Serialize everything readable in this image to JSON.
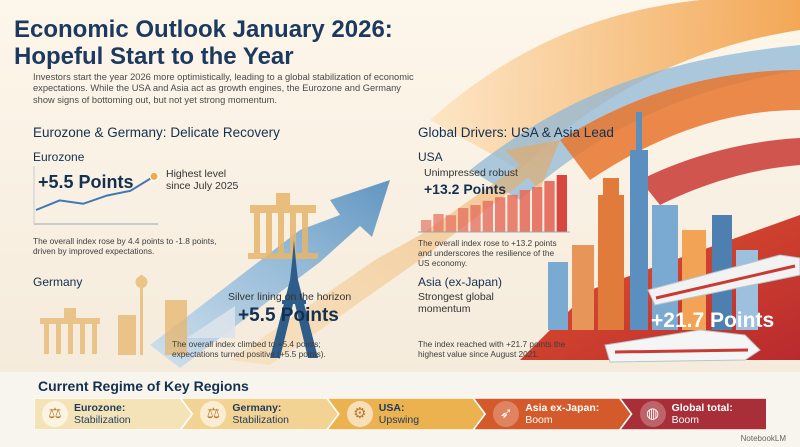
{
  "header": {
    "title": "Economic Outlook January 2026: Hopeful Start to the Year",
    "intro": "Investors start the year 2026 more optimistically, leading to a global stabilization of economic expectations. While the USA and Asia act as growth engines, the Eurozone and Germany show signs of bottoming out, but not yet strong momentum."
  },
  "eurozone_section": {
    "heading": "Eurozone & Germany: Delicate Recovery",
    "eurozone": {
      "label": "Eurozone",
      "value": "+5.5 Points",
      "callout_line1": "Highest level",
      "callout_line2": "since July 2025",
      "note_line1": "The overall index rose by 4.4 points to -1.8 points,",
      "note_line2": "driven by improved expectations.",
      "trend": [
        0.25,
        0.45,
        0.38,
        0.55,
        0.65,
        0.95
      ]
    },
    "germany": {
      "label": "Germany",
      "callout": "Silver lining on the horizon",
      "value": "+5.5 Points",
      "note_line1": "The overall index climbed to +5.4 points;",
      "note_line2": "expectations turned positive (+5.5 points)."
    }
  },
  "global_section": {
    "heading": "Global Drivers: USA & Asia Lead",
    "usa": {
      "label": "USA",
      "callout": "Unimpressed robust",
      "value": "+13.2 Points",
      "note_line1": "The overall index rose to +13.2 points",
      "note_line2": "and underscores the resilience of the",
      "note_line3": "US economy.",
      "trend": [
        0.2,
        0.3,
        0.28,
        0.4,
        0.45,
        0.52,
        0.58,
        0.62,
        0.7,
        0.75,
        0.85,
        0.95
      ]
    },
    "asia": {
      "label": "Asia (ex-Japan)",
      "callout_line1": "Strongest global",
      "callout_line2": "momentum",
      "value": "+21.7 Points",
      "note_line1": "The index reached with +21.7 points the",
      "note_line2": "highest value since August 2021."
    }
  },
  "regimes": {
    "title": "Current Regime of Key Regions",
    "items": [
      {
        "region": "Eurozone:",
        "state": "Stabilization",
        "icon": "scales-icon",
        "fill": "#f5e3b8",
        "text_color": "#1c3a5f"
      },
      {
        "region": "Germany:",
        "state": "Stabilization",
        "icon": "scales-icon",
        "fill": "#f3d393",
        "text_color": "#1c3a5f"
      },
      {
        "region": "USA:",
        "state": "Upswing",
        "icon": "gear-icon",
        "fill": "#ecb24f",
        "text_color": "#1c3a5f"
      },
      {
        "region": "Asia ex-Japan:",
        "state": "Boom",
        "icon": "rocket-icon",
        "fill": "#d45a2c",
        "text_color": "#ffffff"
      },
      {
        "region": "Global total:",
        "state": "Boom",
        "icon": "globe-icon",
        "fill": "#a82f37",
        "text_color": "#ffffff"
      }
    ]
  },
  "credit": "NotebookLM",
  "colors": {
    "navy": "#14304f",
    "orange": "#e8752e",
    "red": "#c93a35",
    "sky": "#8fb8d8",
    "cream": "#f7f3ec"
  }
}
